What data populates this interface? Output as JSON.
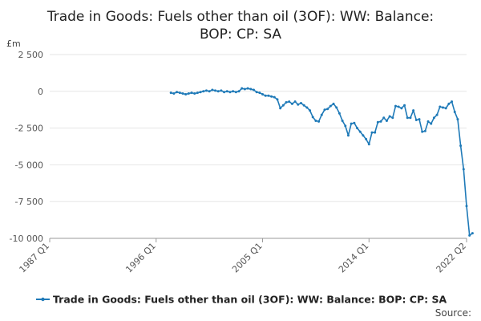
{
  "chart_data": {
    "type": "line",
    "title": "Trade in Goods: Fuels other than oil (3OF): WW: Balance: BOP: CP: SA",
    "ylabel": "£m",
    "xlabel": "",
    "ylim": [
      -10000,
      2500
    ],
    "yticks": [
      2500,
      0,
      -2500,
      -5000,
      -7500,
      -10000
    ],
    "ytick_labels": [
      "2 500",
      "0",
      "-2 500",
      "-5 000",
      "-7 500",
      "-10 000"
    ],
    "xlim": [
      1987.0,
      2022.25
    ],
    "xticks": [
      1987.0,
      1996.0,
      2005.0,
      2014.0,
      2022.25
    ],
    "xtick_labels": [
      "1987 Q1",
      "1996 Q1",
      "2005 Q1",
      "2014 Q1",
      "2022 Q2"
    ],
    "grid": "horizontal",
    "color": "#1f7ab8",
    "legend_position": "bottom",
    "series": [
      {
        "name": "Trade in Goods: Fuels other than oil (3OF): WW: Balance: BOP: CP: SA",
        "points": [
          [
            1997.25,
            -100
          ],
          [
            1997.5,
            -150
          ],
          [
            1997.75,
            -50
          ],
          [
            1998.0,
            -100
          ],
          [
            1998.25,
            -150
          ],
          [
            1998.5,
            -200
          ],
          [
            1998.75,
            -150
          ],
          [
            1999.0,
            -100
          ],
          [
            1999.25,
            -150
          ],
          [
            1999.5,
            -100
          ],
          [
            1999.75,
            -50
          ],
          [
            2000.0,
            0
          ],
          [
            2000.25,
            50
          ],
          [
            2000.5,
            0
          ],
          [
            2000.75,
            100
          ],
          [
            2001.0,
            50
          ],
          [
            2001.25,
            0
          ],
          [
            2001.5,
            50
          ],
          [
            2001.75,
            -50
          ],
          [
            2002.0,
            0
          ],
          [
            2002.25,
            -50
          ],
          [
            2002.5,
            0
          ],
          [
            2002.75,
            -50
          ],
          [
            2003.0,
            0
          ],
          [
            2003.25,
            200
          ],
          [
            2003.5,
            150
          ],
          [
            2003.75,
            200
          ],
          [
            2004.0,
            150
          ],
          [
            2004.25,
            100
          ],
          [
            2004.5,
            -50
          ],
          [
            2004.75,
            -100
          ],
          [
            2005.0,
            -200
          ],
          [
            2005.25,
            -300
          ],
          [
            2005.5,
            -300
          ],
          [
            2005.75,
            -350
          ],
          [
            2006.0,
            -400
          ],
          [
            2006.25,
            -550
          ],
          [
            2006.5,
            -1150
          ],
          [
            2006.75,
            -950
          ],
          [
            2007.0,
            -750
          ],
          [
            2007.25,
            -700
          ],
          [
            2007.5,
            -850
          ],
          [
            2007.75,
            -700
          ],
          [
            2008.0,
            -900
          ],
          [
            2008.25,
            -800
          ],
          [
            2008.5,
            -950
          ],
          [
            2008.75,
            -1100
          ],
          [
            2009.0,
            -1300
          ],
          [
            2009.25,
            -1750
          ],
          [
            2009.5,
            -2000
          ],
          [
            2009.75,
            -2050
          ],
          [
            2010.0,
            -1600
          ],
          [
            2010.25,
            -1250
          ],
          [
            2010.5,
            -1200
          ],
          [
            2010.75,
            -1000
          ],
          [
            2011.0,
            -850
          ],
          [
            2011.25,
            -1100
          ],
          [
            2011.5,
            -1500
          ],
          [
            2011.75,
            -2000
          ],
          [
            2012.0,
            -2350
          ],
          [
            2012.25,
            -3000
          ],
          [
            2012.5,
            -2200
          ],
          [
            2012.75,
            -2150
          ],
          [
            2013.0,
            -2500
          ],
          [
            2013.25,
            -2750
          ],
          [
            2013.5,
            -3000
          ],
          [
            2013.75,
            -3250
          ],
          [
            2014.0,
            -3600
          ],
          [
            2014.25,
            -2800
          ],
          [
            2014.5,
            -2800
          ],
          [
            2014.75,
            -2100
          ],
          [
            2015.0,
            -2050
          ],
          [
            2015.25,
            -1800
          ],
          [
            2015.5,
            -2000
          ],
          [
            2015.75,
            -1700
          ],
          [
            2016.0,
            -1800
          ],
          [
            2016.25,
            -1000
          ],
          [
            2016.5,
            -1050
          ],
          [
            2016.75,
            -1150
          ],
          [
            2017.0,
            -950
          ],
          [
            2017.25,
            -1800
          ],
          [
            2017.5,
            -1800
          ],
          [
            2017.75,
            -1300
          ],
          [
            2018.0,
            -1950
          ],
          [
            2018.25,
            -1900
          ],
          [
            2018.5,
            -2750
          ],
          [
            2018.75,
            -2700
          ],
          [
            2019.0,
            -2050
          ],
          [
            2019.25,
            -2200
          ],
          [
            2019.5,
            -1800
          ],
          [
            2019.75,
            -1600
          ],
          [
            2020.0,
            -1050
          ],
          [
            2020.25,
            -1100
          ],
          [
            2020.5,
            -1150
          ],
          [
            2020.75,
            -850
          ],
          [
            2021.0,
            -700
          ],
          [
            2021.25,
            -1400
          ],
          [
            2021.5,
            -1900
          ],
          [
            2021.75,
            -3700
          ],
          [
            2022.0,
            -5300
          ],
          [
            2022.25,
            -7800
          ],
          [
            2022.5,
            -9800
          ],
          [
            2022.75,
            -9650
          ]
        ]
      }
    ],
    "source_label": "Source:"
  }
}
